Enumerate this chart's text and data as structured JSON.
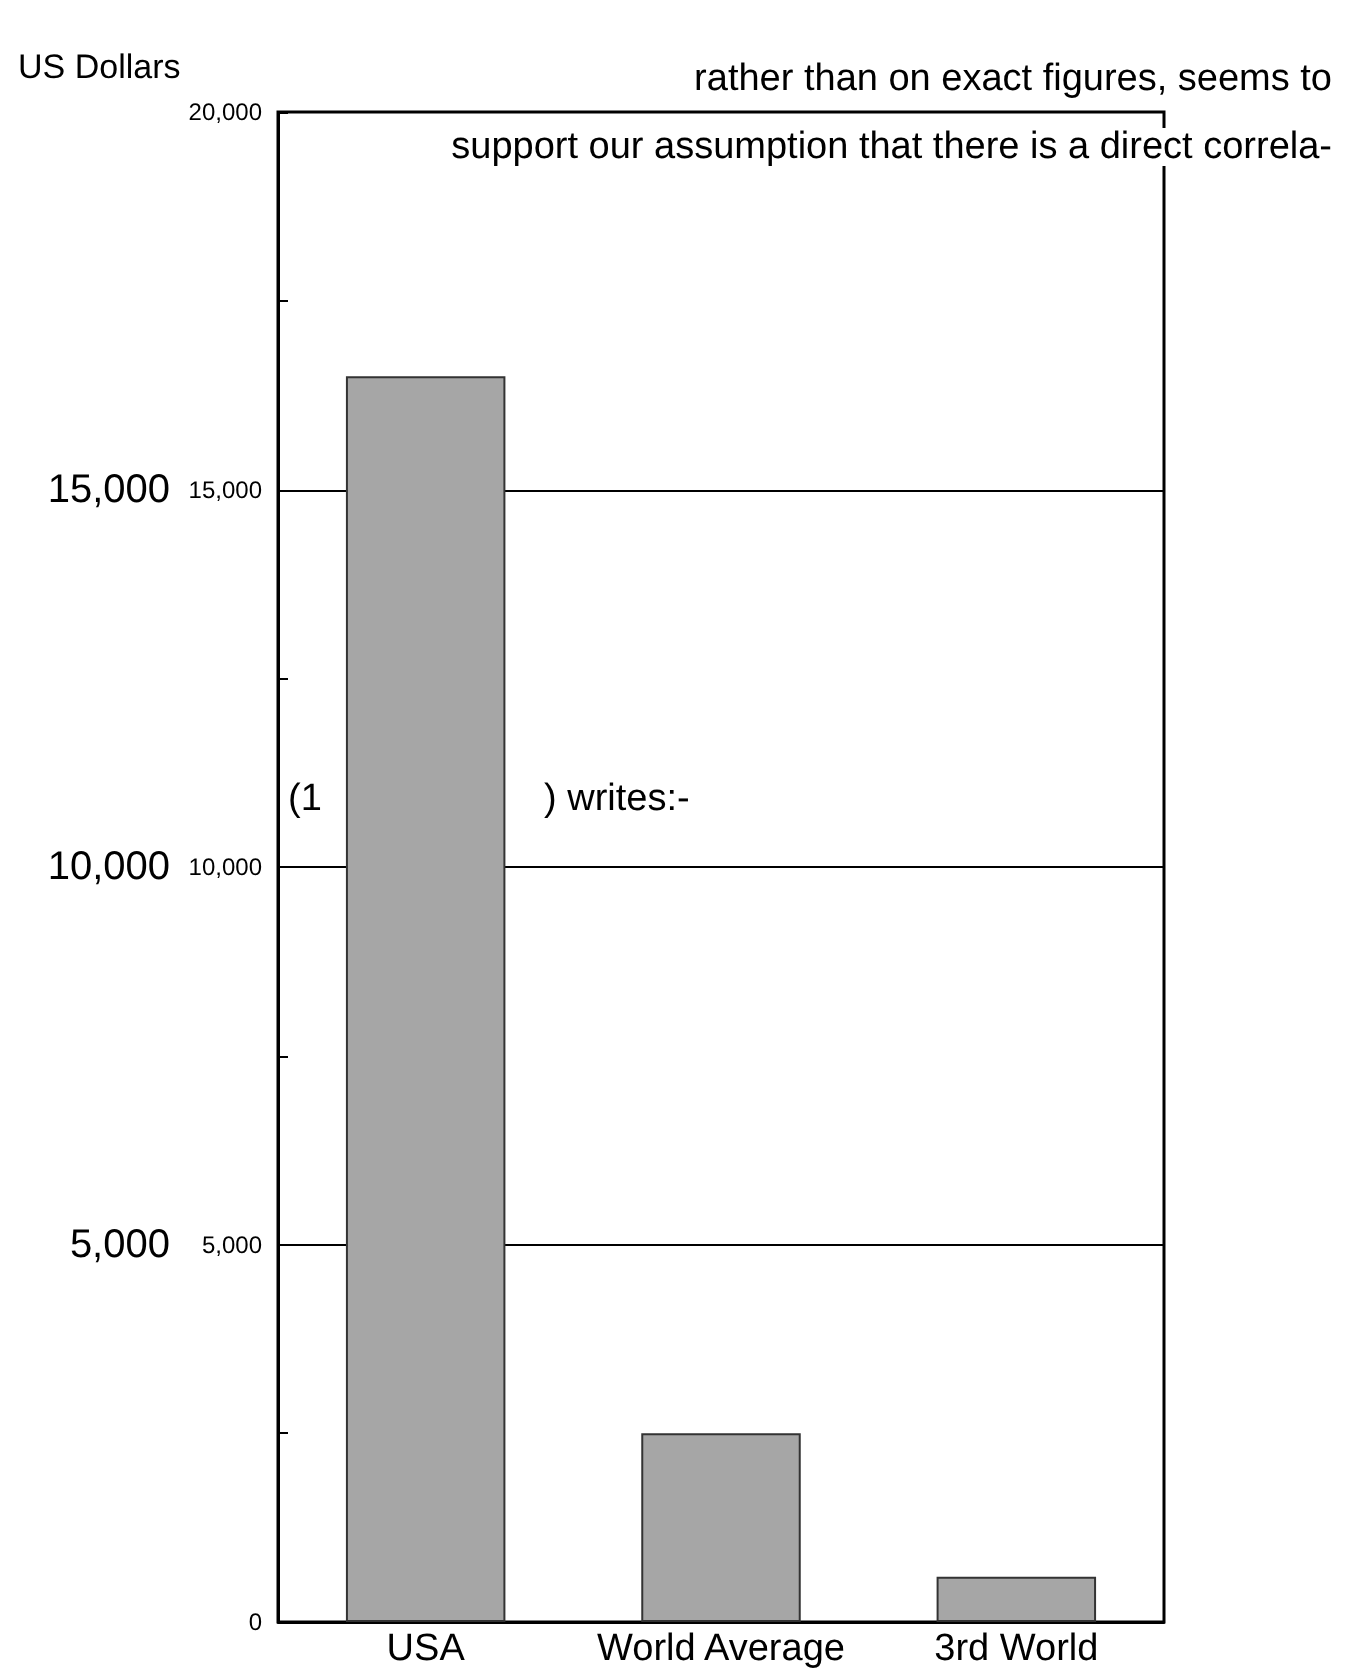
{
  "chart_data": {
    "type": "bar",
    "ylabel": "US Dollars",
    "categories": [
      "USA",
      "World Average",
      "3rd World"
    ],
    "values": [
      16500,
      2500,
      600
    ],
    "color": "#a6a6a6",
    "ylim": [
      0,
      20000
    ],
    "yticks": [
      {
        "value": 5000,
        "label": "5,000"
      },
      {
        "value": 10000,
        "label": "10,000"
      },
      {
        "value": 15000,
        "label": "15,000"
      }
    ],
    "y2lim": [
      0,
      20000
    ],
    "y2ticks": [
      0,
      {
        "value": 2500,
        "label": null
      },
      {
        "value": 5000,
        "label": "5,000"
      },
      {
        "value": 7500,
        "label": null
      },
      {
        "value": 10000,
        "label": "10,000"
      },
      {
        "value": 12500,
        "label": null
      },
      {
        "value": 15000,
        "label": "15,000"
      },
      {
        "value": 17500,
        "label": null
      },
      {
        "value": 20000,
        "label": "20,000"
      }
    ],
    "grid": "y",
    "annotations": [
      "rather than on exact figures, seems to",
      "support our assumption that there is a direct correla-",
      "(1",
      ") writes:-"
    ]
  }
}
